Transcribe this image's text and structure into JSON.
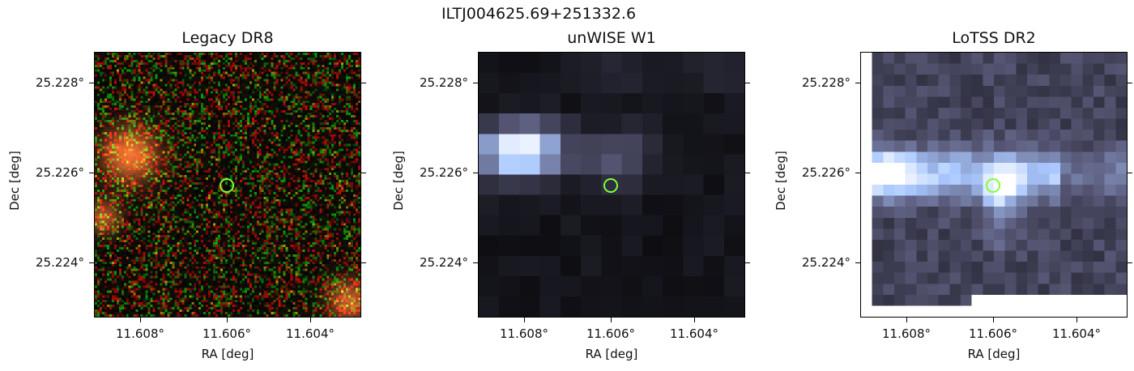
{
  "figure": {
    "title": "ILTJ004625.69+251332.6",
    "panels": [
      {
        "title": "Legacy DR8",
        "kind": "legacy"
      },
      {
        "title": "unWISE W1",
        "kind": "unwise"
      },
      {
        "title": "LoTSS DR2",
        "kind": "lotss"
      }
    ],
    "xlabel": "RA [deg]",
    "ylabel": "Dec [deg]",
    "xticks": [
      "11.608°",
      "11.606°",
      "11.604°"
    ],
    "yticks": [
      "25.228°",
      "25.226°",
      "25.224°"
    ],
    "marker_color": "#7fff3a"
  }
}
